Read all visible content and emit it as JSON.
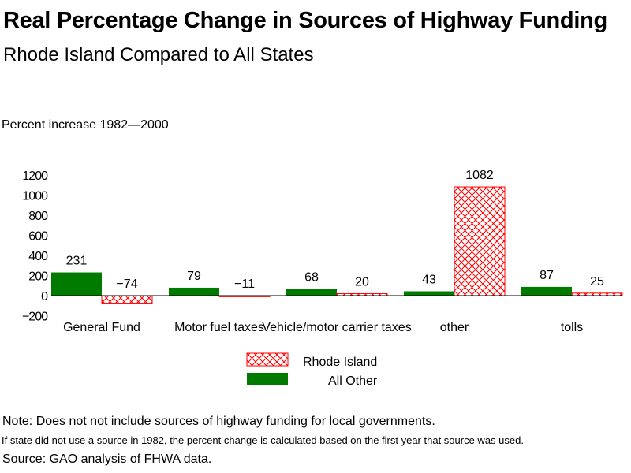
{
  "chart_data": {
    "type": "bar",
    "title": "Real Percentage Change in Sources of Highway Funding",
    "subtitle": "Rhode Island Compared to All States",
    "ylabel": "Percent increase 1982—2000",
    "xlabel": "",
    "ylim": [
      -200,
      1200
    ],
    "yticks": [
      1200,
      1000,
      800,
      600,
      400,
      200,
      0,
      -200
    ],
    "ytick_labels": [
      "1200",
      "1000",
      "800",
      "600",
      "400",
      "200",
      "0",
      "−200"
    ],
    "grid": false,
    "categories": [
      "General Fund",
      "Motor fuel taxes",
      "Vehicle/motor carrier taxes",
      "other",
      "tolls"
    ],
    "series": [
      {
        "name": "All Other",
        "color": "#007b00",
        "pattern": "solid",
        "values": [
          231,
          79,
          68,
          43,
          87
        ],
        "labels": [
          "231",
          "79",
          "68",
          "43",
          "87"
        ]
      },
      {
        "name": "Rhode Island",
        "color": "#ff0000",
        "pattern": "crosshatch",
        "values": [
          -74,
          -11,
          20,
          1082,
          25
        ],
        "labels": [
          "−74",
          "−11",
          "20",
          "1082",
          "25"
        ]
      }
    ],
    "legend": {
      "placement": "bottom-center",
      "entries": [
        {
          "label": "Rhode Island",
          "series": "Rhode Island"
        },
        {
          "label": "All Other",
          "series": "All Other"
        }
      ]
    }
  },
  "notes": {
    "note": "Note: Does not not include sources of highway funding for local governments.",
    "detail": "If state did not use a source in 1982, the percent change is calculated based on the first year that source was used.",
    "source": "Source: GAO analysis of FHWA data."
  }
}
